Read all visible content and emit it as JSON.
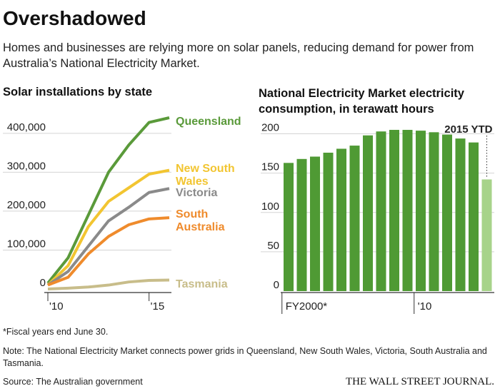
{
  "headline": "Overshadowed",
  "subtitle": "Homes and businesses are relying more on solar panels, reducing demand for power from Australia’s National Electricity Market.",
  "footnote": "*Fiscal years end June 30.",
  "note": "Note: The National Electricity Market connects power grids in Queensland, New South Wales, Victoria, South Australia and Tasmania.",
  "source": "Source: The Australian government",
  "brand": "THE WALL STREET JOURNAL.",
  "chart_data": [
    {
      "type": "line",
      "title": "Solar installations by state",
      "x": [
        2010,
        2011,
        2012,
        2013,
        2014,
        2015,
        2016
      ],
      "xlim": [
        2010,
        2016
      ],
      "xticks": [
        {
          "value": 2010,
          "label": "'10"
        },
        {
          "value": 2015,
          "label": "'15"
        }
      ],
      "ylim": [
        0,
        440000
      ],
      "yticks": [
        0,
        {
          "value": 100000,
          "label": "100,000"
        },
        {
          "value": 200000,
          "label": "200,000"
        },
        {
          "value": 300000,
          "label": "300,000"
        },
        {
          "value": 400000,
          "label": "400,000"
        }
      ],
      "grid": true,
      "series": [
        {
          "name": "Queensland",
          "color": "#5a9a3a",
          "values": [
            15000,
            80000,
            190000,
            300000,
            370000,
            428000,
            440000
          ]
        },
        {
          "name": "New South Wales",
          "color": "#f2c531",
          "values": [
            10000,
            60000,
            160000,
            225000,
            260000,
            295000,
            305000
          ]
        },
        {
          "name": "Victoria",
          "color": "#8a8a8a",
          "values": [
            10000,
            45000,
            110000,
            175000,
            210000,
            248000,
            258000
          ]
        },
        {
          "name": "South Australia",
          "color": "#ef8b2c",
          "values": [
            10000,
            30000,
            90000,
            135000,
            165000,
            180000,
            183000
          ]
        },
        {
          "name": "Tasmania",
          "color": "#c8bd8a",
          "values": [
            0,
            2000,
            5000,
            10000,
            18000,
            22000,
            23000
          ]
        }
      ]
    },
    {
      "type": "bar",
      "title": "National Electricity Market electricity consumption, in terawatt hours",
      "categories": [
        "FY2000*",
        null,
        null,
        null,
        null,
        null,
        null,
        null,
        null,
        null,
        "'10",
        null,
        null,
        null,
        null,
        "2015 YTD"
      ],
      "values": [
        163,
        168,
        171,
        176,
        181,
        185,
        198,
        203,
        205,
        205,
        204,
        202,
        199,
        194,
        189,
        142
      ],
      "colors": [
        "#4f9a34",
        "#4f9a34",
        "#4f9a34",
        "#4f9a34",
        "#4f9a34",
        "#4f9a34",
        "#4f9a34",
        "#4f9a34",
        "#4f9a34",
        "#4f9a34",
        "#4f9a34",
        "#4f9a34",
        "#4f9a34",
        "#4f9a34",
        "#4f9a34",
        "#a7d38a"
      ],
      "ylim": [
        0,
        215
      ],
      "yticks": [
        0,
        50,
        100,
        150,
        200
      ],
      "grid": true
    }
  ]
}
